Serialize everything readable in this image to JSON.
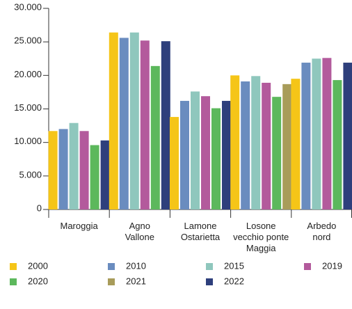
{
  "chart_data": {
    "type": "bar",
    "categories": [
      "Maroggia",
      "Agno\nVallone",
      "Lamone\nOstarietta",
      "Losone\nvecchio ponte\nMaggia",
      "Arbedo\nnord"
    ],
    "series": [
      {
        "name": "2000",
        "color": "#f5c518",
        "values": [
          11700,
          26400,
          13800,
          20000,
          19500
        ]
      },
      {
        "name": "2010",
        "color": "#6a8cbf",
        "values": [
          12000,
          25600,
          16200,
          19100,
          21900
        ]
      },
      {
        "name": "2015",
        "color": "#8fc7bd",
        "values": [
          12900,
          26400,
          17600,
          19900,
          22500
        ]
      },
      {
        "name": "2019",
        "color": "#b35a9c",
        "values": [
          11700,
          25200,
          16900,
          18900,
          22600
        ]
      },
      {
        "name": "2020",
        "color": "#5cb85c",
        "values": [
          9600,
          21400,
          15100,
          16800,
          19300
        ]
      },
      {
        "name": "2021",
        "color": "#a89c5a",
        "values": [
          null,
          null,
          null,
          18700,
          null
        ]
      },
      {
        "name": "2022",
        "color": "#2e3f7c",
        "values": [
          10300,
          25100,
          16200,
          null,
          21900
        ]
      }
    ],
    "ylim": [
      0,
      30000
    ],
    "yticks": [
      0,
      {
        "value": 5000,
        "label": "5.000"
      },
      {
        "value": 10000,
        "label": "10.000"
      },
      {
        "value": 15000,
        "label": "15.000"
      },
      {
        "value": 20000,
        "label": "20.000"
      },
      {
        "value": 25000,
        "label": "25.000"
      },
      {
        "value": 30000,
        "label": "30.000"
      }
    ]
  }
}
